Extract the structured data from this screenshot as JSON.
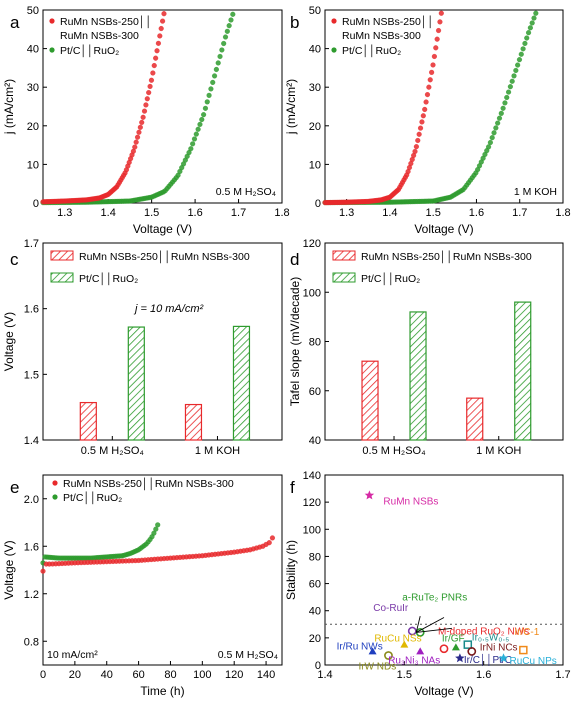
{
  "figure": {
    "panels": [
      {
        "letter": "a"
      },
      {
        "letter": "b"
      },
      {
        "letter": "c"
      },
      {
        "letter": "d"
      },
      {
        "letter": "e"
      },
      {
        "letter": "f"
      }
    ]
  },
  "colors": {
    "red": "#e8292b",
    "green": "#2e9b2e",
    "magenta": "#d62aa5",
    "dark": "#1a1a1a"
  },
  "chart_data": [
    {
      "panel": "a",
      "type": "scatter",
      "xlabel": "Voltage (V)",
      "ylabel": "j (mA/cm²)",
      "xlim": [
        1.25,
        1.8
      ],
      "ylim": [
        0,
        50
      ],
      "xticks": [
        "1.3",
        "1.4",
        "1.5",
        "1.6",
        "1.7",
        "1.8"
      ],
      "yticks": [
        "0",
        "10",
        "20",
        "30",
        "40",
        "50"
      ],
      "annotation": "0.5 M H₂SO₄",
      "legend": [
        "RuMn NSBs-250││",
        "RuMn NSBs-300",
        "Pt/C││RuO₂"
      ],
      "series": [
        {
          "name": "RuMn NSBs-250││RuMn NSBs-300",
          "color": "red",
          "x": [
            1.25,
            1.3,
            1.35,
            1.38,
            1.4,
            1.42,
            1.44,
            1.46,
            1.48,
            1.5,
            1.51,
            1.52,
            1.53
          ],
          "y": [
            0.3,
            0.5,
            0.8,
            1.3,
            2.2,
            4.2,
            8,
            14,
            22,
            32,
            38,
            44,
            50
          ]
        },
        {
          "name": "Pt/C││RuO₂",
          "color": "green",
          "x": [
            1.25,
            1.35,
            1.45,
            1.5,
            1.53,
            1.56,
            1.59,
            1.62,
            1.65,
            1.67,
            1.69
          ],
          "y": [
            0.1,
            0.2,
            0.5,
            1.5,
            3,
            7,
            14,
            23,
            35,
            43,
            50
          ]
        }
      ]
    },
    {
      "panel": "b",
      "type": "scatter",
      "xlabel": "Voltage (V)",
      "ylabel": "j (mA/cm²)",
      "xlim": [
        1.25,
        1.8
      ],
      "ylim": [
        0,
        50
      ],
      "xticks": [
        "1.3",
        "1.4",
        "1.5",
        "1.6",
        "1.7",
        "1.8"
      ],
      "yticks": [
        "0",
        "10",
        "20",
        "30",
        "40",
        "50"
      ],
      "annotation": "1 M KOH",
      "legend": [
        "RuMn NSBs-250││",
        "RuMn NSBs-300",
        "Pt/C││RuO₂"
      ],
      "series": [
        {
          "name": "RuMn NSBs-250││RuMn NSBs-300",
          "color": "red",
          "x": [
            1.25,
            1.3,
            1.35,
            1.38,
            1.4,
            1.42,
            1.44,
            1.46,
            1.48,
            1.5,
            1.51,
            1.52
          ],
          "y": [
            0.1,
            0.2,
            0.4,
            0.8,
            1.5,
            3.5,
            7.5,
            14,
            24,
            36,
            43,
            50
          ]
        },
        {
          "name": "Pt/C││RuO₂",
          "color": "green",
          "x": [
            1.25,
            1.4,
            1.5,
            1.54,
            1.57,
            1.6,
            1.63,
            1.66,
            1.69,
            1.72,
            1.74
          ],
          "y": [
            0.1,
            0.2,
            0.5,
            1.5,
            3.5,
            8,
            15,
            24,
            34,
            44,
            50
          ]
        }
      ]
    },
    {
      "panel": "c",
      "type": "bar",
      "ylabel": "Voltage (V)",
      "ylim": [
        1.4,
        1.7
      ],
      "yticks": [
        "1.4",
        "1.5",
        "1.6",
        "1.7"
      ],
      "categories": [
        "0.5 M H₂SO₄",
        "1 M KOH"
      ],
      "annotation": "j = 10 mA/cm²",
      "legend": [
        "RuMn NSBs-250││RuMn NSBs-300",
        "Pt/C││RuO₂"
      ],
      "series": [
        {
          "name": "RuMn NSBs-250││RuMn NSBs-300",
          "color": "red",
          "values": [
            1.457,
            1.454
          ]
        },
        {
          "name": "Pt/C││RuO₂",
          "color": "green",
          "values": [
            1.572,
            1.573
          ]
        }
      ]
    },
    {
      "panel": "d",
      "type": "bar",
      "ylabel": "Tafel slope (mV/decade)",
      "ylim": [
        40,
        120
      ],
      "yticks": [
        "40",
        "60",
        "80",
        "100",
        "120"
      ],
      "categories": [
        "0.5 M H₂SO₄",
        "1 M KOH"
      ],
      "legend": [
        "RuMn NSBs-250││RuMn NSBs-300",
        "Pt/C││RuO₂"
      ],
      "series": [
        {
          "name": "RuMn NSBs-250││RuMn NSBs-300",
          "color": "red",
          "values": [
            72,
            57
          ]
        },
        {
          "name": "Pt/C││RuO₂",
          "color": "green",
          "values": [
            92,
            96
          ]
        }
      ]
    },
    {
      "panel": "e",
      "type": "scatter",
      "xlabel": "Time (h)",
      "ylabel": "Voltage (V)",
      "xlim": [
        0,
        150
      ],
      "ylim": [
        0.6,
        2.2
      ],
      "xticks": [
        "0",
        "20",
        "40",
        "60",
        "80",
        "100",
        "120",
        "140"
      ],
      "yticks": [
        "0.8",
        "1.2",
        "1.6",
        "2.0"
      ],
      "annotations": [
        "10 mA/cm²",
        "0.5 M H₂SO₄"
      ],
      "legend": [
        "RuMn NSBs-250││RuMn NSBs-300",
        "Pt/C││RuO₂"
      ],
      "series": [
        {
          "name": "RuMn NSBs-250││RuMn NSBs-300",
          "color": "red",
          "x": [
            0,
            1,
            5,
            20,
            40,
            60,
            80,
            100,
            120,
            130,
            138,
            142,
            144
          ],
          "y": [
            1.39,
            1.45,
            1.45,
            1.46,
            1.47,
            1.48,
            1.5,
            1.52,
            1.55,
            1.57,
            1.6,
            1.63,
            1.67
          ]
        },
        {
          "name": "Pt/C││RuO₂",
          "color": "green",
          "x": [
            0,
            1,
            10,
            20,
            30,
            40,
            50,
            55,
            60,
            65,
            68,
            70,
            72
          ],
          "y": [
            1.46,
            1.51,
            1.5,
            1.5,
            1.5,
            1.51,
            1.52,
            1.54,
            1.57,
            1.62,
            1.67,
            1.72,
            1.78
          ]
        }
      ]
    },
    {
      "panel": "f",
      "type": "scatter",
      "xlabel": "Voltage (V)",
      "ylabel": "Stability (h)",
      "xlim": [
        1.4,
        1.7
      ],
      "ylim": [
        0,
        140
      ],
      "xticks": [
        "1.4",
        "1.5",
        "1.6",
        "1.7"
      ],
      "yticks": [
        "0",
        "20",
        "40",
        "60",
        "80",
        "100",
        "120",
        "140"
      ],
      "reference_line_y": 30,
      "points": [
        {
          "label": "RuMn NSBs",
          "x": 1.456,
          "y": 125,
          "color": "#d62aa5",
          "marker": "star"
        },
        {
          "label": "Co-RuIr",
          "x": 1.51,
          "y": 25,
          "color": "#7a3aa8",
          "marker": "circle"
        },
        {
          "label": "a-RuTe₂ PNRs",
          "x": 1.52,
          "y": 24,
          "color": "#2e9b2e",
          "marker": "circle"
        },
        {
          "label": "M-doped RuO₂ NWs",
          "x": 1.55,
          "y": 12,
          "color": "#e8292b",
          "marker": "circle"
        },
        {
          "label": "RuCu NSs",
          "x": 1.5,
          "y": 15,
          "color": "#e0b800",
          "marker": "triangle"
        },
        {
          "label": "Ir/GF",
          "x": 1.565,
          "y": 13,
          "color": "#2e9b2e",
          "marker": "triangle"
        },
        {
          "label": "Ir₀.₅W₀.₅",
          "x": 1.58,
          "y": 15,
          "color": "#1a8a8a",
          "marker": "square"
        },
        {
          "label": "Ir/C-1",
          "x": 1.65,
          "y": 11,
          "color": "#f08a1a",
          "marker": "square"
        },
        {
          "label": "Ir/Ru NWs",
          "x": 1.46,
          "y": 10,
          "color": "#1f3fbf",
          "marker": "triangle"
        },
        {
          "label": "IrNi NCs",
          "x": 1.585,
          "y": 10,
          "color": "#7a1a1a",
          "marker": "circle"
        },
        {
          "label": "IrW NDs",
          "x": 1.48,
          "y": 7,
          "color": "#8a8a1a",
          "marker": "circle"
        },
        {
          "label": "Ru₃Ni₃ NAs",
          "x": 1.52,
          "y": 10,
          "color": "#a020c0",
          "marker": "triangle"
        },
        {
          "label": "Ir/C││Pt/C",
          "x": 1.57,
          "y": 5,
          "color": "#2a2a8a",
          "marker": "star"
        },
        {
          "label": "RuCu NPs",
          "x": 1.625,
          "y": 5,
          "color": "#2ab0d8",
          "marker": "star"
        }
      ]
    }
  ]
}
